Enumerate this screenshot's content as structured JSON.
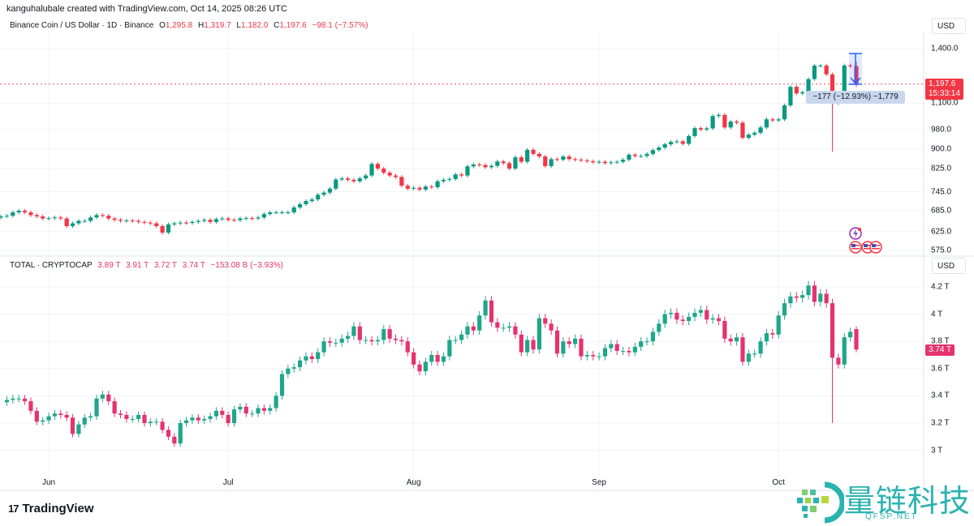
{
  "credit": "kanguhalubale created with TradingView.com, Oct 14, 2025 08:26 UTC",
  "colors": {
    "up": "#089981",
    "down": "#f23645",
    "up2": "#1fa68c",
    "down2": "#e5336f",
    "grid": "#f2f3f5",
    "measure": "#2962ff"
  },
  "bnb_legend": {
    "symbol": "Binance Coin / US Dollar · 1D · Binance",
    "o_label": "O",
    "o": "1,295.8",
    "h_label": "H",
    "h": "1,319.7",
    "l_label": "L",
    "l": "1,182.0",
    "c_label": "C",
    "c": "1,197.6",
    "change": "−98.1 (−7.57%)"
  },
  "total_legend": {
    "symbol": "TOTAL · CRYPTOCAP",
    "o": "3.89 T",
    "h": "3.91 T",
    "l": "3.72 T",
    "c": "3.74 T",
    "change": "−153.08 B (−3.93%)"
  },
  "bnb_currency": "USD",
  "total_currency": "USD",
  "bnb_price_tag": {
    "price": "1,197.6",
    "countdown": "15:33:14"
  },
  "total_price_tag": "3.74 T",
  "measure_label": "−177 (−12.93%) −1,779",
  "events": [
    "lightning-event-icon",
    "us-flag-icon",
    "us-flag-icon",
    "us-flag-icon"
  ],
  "x_ticks": [
    {
      "label": "Jun",
      "date": "2025-06-01"
    },
    {
      "label": "Jul",
      "date": "2025-07-01"
    },
    {
      "label": "Aug",
      "date": "2025-08-01"
    },
    {
      "label": "Sep",
      "date": "2025-09-01"
    },
    {
      "label": "Oct",
      "date": "2025-10-01"
    }
  ],
  "footer": {
    "brand": "TradingView",
    "brand_mark": "17",
    "watermark": "量链科技",
    "watermark_sub": "QFSP.NET"
  },
  "chart_data": [
    {
      "type": "candlestick",
      "title": "Binance Coin / US Dollar · 1D · Binance",
      "interval": "1D",
      "y_scale": "log",
      "ylim": [
        560,
        1420
      ],
      "y_ticks": [
        {
          "value": 1400,
          "label": "1,400.0"
        },
        {
          "value": 1100,
          "label": "1,100.0"
        },
        {
          "value": 980,
          "label": "980.0"
        },
        {
          "value": 900,
          "label": "900.0"
        },
        {
          "value": 825,
          "label": "825.0"
        },
        {
          "value": 745,
          "label": "745.0"
        },
        {
          "value": 685,
          "label": "685.0"
        },
        {
          "value": 625,
          "label": "625.0"
        },
        {
          "value": 575,
          "label": "575.0"
        }
      ],
      "last_date": "2025-10-14",
      "closes": [
        668,
        670,
        680,
        685,
        680,
        672,
        668,
        662,
        663,
        665,
        662,
        640,
        648,
        655,
        655,
        665,
        672,
        670,
        662,
        658,
        655,
        656,
        655,
        652,
        650,
        648,
        640,
        622,
        645,
        648,
        650,
        649,
        652,
        655,
        658,
        652,
        660,
        662,
        658,
        657,
        662,
        663,
        662,
        665,
        675,
        680,
        680,
        680,
        680,
        695,
        705,
        715,
        720,
        735,
        742,
        755,
        786,
        790,
        785,
        780,
        790,
        800,
        842,
        825,
        810,
        800,
        795,
        765,
        755,
        758,
        752,
        762,
        760,
        780,
        785,
        788,
        804,
        800,
        833,
        840,
        838,
        830,
        835,
        851,
        845,
        825,
        867,
        850,
        896,
        880,
        870,
        834,
        860,
        858,
        870,
        860,
        858,
        855,
        852,
        848,
        850,
        845,
        848,
        850,
        858,
        877,
        872,
        872,
        880,
        895,
        905,
        918,
        928,
        930,
        920,
        952,
        986,
        980,
        985,
        1040,
        1045,
        989,
        1015,
        1010,
        945,
        958,
        966,
        989,
        1025,
        1020,
        1025,
        1090,
        1183,
        1149,
        1155,
        1224,
        1299,
        1299,
        1250,
        1101,
        1130,
        1300,
        1296,
        1197.6
      ],
      "last_candle": {
        "open": 1295.8,
        "high": 1319.7,
        "low": 1182.0,
        "close": 1197.6
      },
      "notable_lows": {
        "2025-10-10": 889
      }
    },
    {
      "type": "candlestick",
      "title": "TOTAL · CRYPTOCAP",
      "interval": "1D",
      "y_scale": "linear",
      "unit": "T",
      "ylim": [
        2.9,
        4.3
      ],
      "y_ticks": [
        {
          "value": 4.2,
          "label": "4.2 T"
        },
        {
          "value": 4.0,
          "label": "4 T"
        },
        {
          "value": 3.8,
          "label": "3.8 T"
        },
        {
          "value": 3.6,
          "label": "3.6 T"
        },
        {
          "value": 3.4,
          "label": "3.4 T"
        },
        {
          "value": 3.2,
          "label": "3.2 T"
        },
        {
          "value": 3.0,
          "label": "3 T"
        }
      ],
      "last_date": "2025-10-14",
      "closes": [
        3.37,
        3.38,
        3.38,
        3.36,
        3.29,
        3.21,
        3.22,
        3.25,
        3.27,
        3.26,
        3.24,
        3.12,
        3.19,
        3.24,
        3.25,
        3.38,
        3.41,
        3.36,
        3.27,
        3.26,
        3.23,
        3.23,
        3.26,
        3.2,
        3.21,
        3.21,
        3.15,
        3.1,
        3.05,
        3.2,
        3.22,
        3.24,
        3.22,
        3.23,
        3.25,
        3.29,
        3.26,
        3.2,
        3.3,
        3.32,
        3.27,
        3.27,
        3.31,
        3.29,
        3.31,
        3.4,
        3.56,
        3.6,
        3.61,
        3.66,
        3.69,
        3.67,
        3.72,
        3.8,
        3.79,
        3.79,
        3.82,
        3.84,
        3.91,
        3.81,
        3.81,
        3.8,
        3.81,
        3.89,
        3.82,
        3.81,
        3.8,
        3.72,
        3.63,
        3.58,
        3.65,
        3.7,
        3.65,
        3.69,
        3.81,
        3.81,
        3.85,
        3.91,
        3.88,
        3.99,
        4.1,
        3.94,
        3.9,
        3.9,
        3.91,
        3.85,
        3.72,
        3.81,
        3.74,
        3.97,
        3.93,
        3.88,
        3.71,
        3.8,
        3.78,
        3.82,
        3.69,
        3.7,
        3.69,
        3.69,
        3.75,
        3.78,
        3.73,
        3.73,
        3.72,
        3.76,
        3.8,
        3.8,
        3.87,
        3.93,
        4.0,
        4.01,
        3.96,
        3.95,
        3.98,
        4.01,
        4.03,
        3.96,
        3.97,
        3.95,
        3.82,
        3.8,
        3.83,
        3.65,
        3.71,
        3.71,
        3.8,
        3.86,
        3.85,
        3.99,
        4.08,
        4.13,
        4.12,
        4.14,
        4.21,
        4.09,
        4.15,
        4.08,
        3.68,
        3.63,
        3.83,
        3.87,
        3.74
      ],
      "last_candle": {
        "open": 3.89,
        "high": 3.91,
        "low": 3.72,
        "close": 3.74
      },
      "notable_lows": {
        "2025-10-10": 3.2
      }
    }
  ]
}
